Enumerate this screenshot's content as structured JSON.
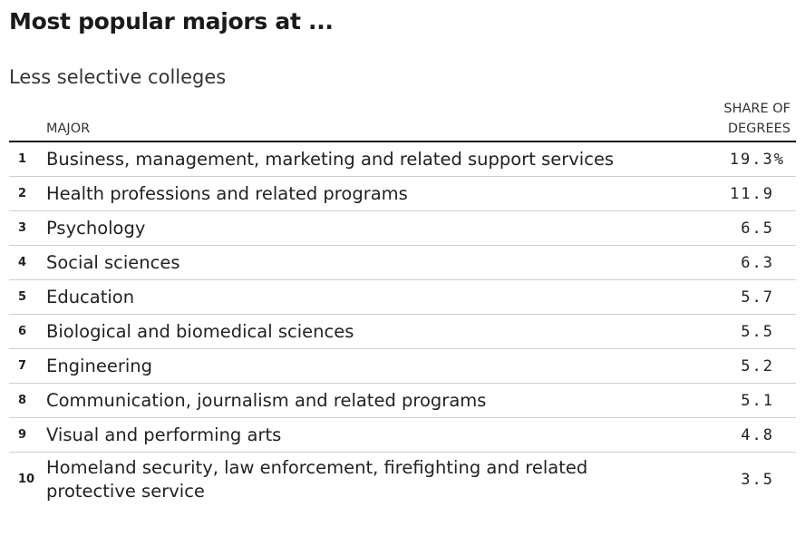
{
  "chart_data": {
    "type": "table",
    "title": "Most popular majors at ...",
    "subtitle": "Less selective colleges",
    "columns": {
      "major": "MAJOR",
      "share_line1": "SHARE OF",
      "share_line2": "DEGREES"
    },
    "unit": "%",
    "rows": [
      {
        "rank": "1",
        "major": "Business, management, marketing and related support services",
        "value": 19.3,
        "display": "19.3"
      },
      {
        "rank": "2",
        "major": "Health professions and related programs",
        "value": 11.9,
        "display": "11.9"
      },
      {
        "rank": "3",
        "major": "Psychology",
        "value": 6.5,
        "display": "6.5"
      },
      {
        "rank": "4",
        "major": "Social sciences",
        "value": 6.3,
        "display": "6.3"
      },
      {
        "rank": "5",
        "major": "Education",
        "value": 5.7,
        "display": "5.7"
      },
      {
        "rank": "6",
        "major": "Biological and biomedical sciences",
        "value": 5.5,
        "display": "5.5"
      },
      {
        "rank": "7",
        "major": "Engineering",
        "value": 5.2,
        "display": "5.2"
      },
      {
        "rank": "8",
        "major": "Communication, journalism and related programs",
        "value": 5.1,
        "display": "5.1"
      },
      {
        "rank": "9",
        "major": "Visual and performing arts",
        "value": 4.8,
        "display": "4.8"
      },
      {
        "rank": "10",
        "major": "Homeland security, law enforcement, firefighting and related protective service",
        "value": 3.5,
        "display": "3.5"
      }
    ]
  }
}
